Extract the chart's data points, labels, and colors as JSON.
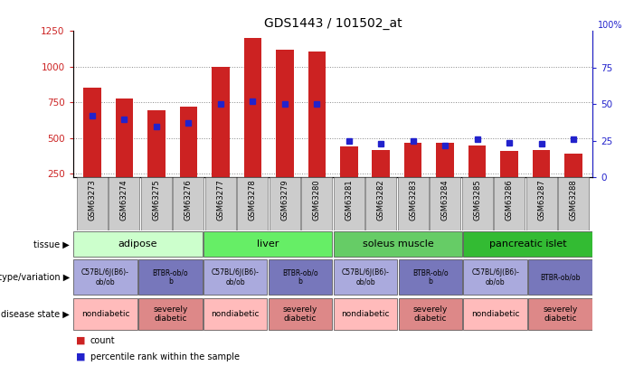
{
  "title": "GDS1443 / 101502_at",
  "samples": [
    "GSM63273",
    "GSM63274",
    "GSM63275",
    "GSM63276",
    "GSM63277",
    "GSM63278",
    "GSM63279",
    "GSM63280",
    "GSM63281",
    "GSM63282",
    "GSM63283",
    "GSM63284",
    "GSM63285",
    "GSM63286",
    "GSM63287",
    "GSM63288"
  ],
  "counts": [
    855,
    780,
    695,
    720,
    1000,
    1200,
    1120,
    1110,
    440,
    415,
    470,
    470,
    450,
    410,
    415,
    390
  ],
  "percentile_ranks": [
    42,
    40,
    35,
    37,
    50,
    52,
    50,
    50,
    25,
    23,
    25,
    22,
    26,
    24,
    23,
    26
  ],
  "ylim_left": [
    225,
    1250
  ],
  "ylim_right": [
    0,
    100
  ],
  "yticks_left": [
    250,
    500,
    750,
    1000,
    1250
  ],
  "yticks_right": [
    0,
    25,
    50,
    75,
    100
  ],
  "bar_color": "#cc2222",
  "dot_color": "#2222cc",
  "tissue_groups": [
    {
      "label": "adipose",
      "start": 0,
      "end": 3,
      "color": "#ccffcc"
    },
    {
      "label": "liver",
      "start": 4,
      "end": 7,
      "color": "#66ee66"
    },
    {
      "label": "soleus muscle",
      "start": 8,
      "end": 11,
      "color": "#66cc66"
    },
    {
      "label": "pancreatic islet",
      "start": 12,
      "end": 15,
      "color": "#33bb33"
    }
  ],
  "genotype_groups": [
    {
      "label": "C57BL/6J(B6)-\nob/ob",
      "start": 0,
      "end": 1,
      "color": "#aaaadd"
    },
    {
      "label": "BTBR-ob/o\nb",
      "start": 2,
      "end": 3,
      "color": "#7777bb"
    },
    {
      "label": "C57BL/6J(B6)-\nob/ob",
      "start": 4,
      "end": 5,
      "color": "#aaaadd"
    },
    {
      "label": "BTBR-ob/o\nb",
      "start": 6,
      "end": 7,
      "color": "#7777bb"
    },
    {
      "label": "C57BL/6J(B6)-\nob/ob",
      "start": 8,
      "end": 9,
      "color": "#aaaadd"
    },
    {
      "label": "BTBR-ob/o\nb",
      "start": 10,
      "end": 11,
      "color": "#7777bb"
    },
    {
      "label": "C57BL/6J(B6)-\nob/ob",
      "start": 12,
      "end": 13,
      "color": "#aaaadd"
    },
    {
      "label": "BTBR-ob/ob",
      "start": 14,
      "end": 15,
      "color": "#7777bb"
    }
  ],
  "disease_groups": [
    {
      "label": "nondiabetic",
      "start": 0,
      "end": 1,
      "color": "#ffbbbb"
    },
    {
      "label": "severely\ndiabetic",
      "start": 2,
      "end": 3,
      "color": "#dd8888"
    },
    {
      "label": "nondiabetic",
      "start": 4,
      "end": 5,
      "color": "#ffbbbb"
    },
    {
      "label": "severely\ndiabetic",
      "start": 6,
      "end": 7,
      "color": "#dd8888"
    },
    {
      "label": "nondiabetic",
      "start": 8,
      "end": 9,
      "color": "#ffbbbb"
    },
    {
      "label": "severely\ndiabetic",
      "start": 10,
      "end": 11,
      "color": "#dd8888"
    },
    {
      "label": "nondiabetic",
      "start": 12,
      "end": 13,
      "color": "#ffbbbb"
    },
    {
      "label": "severely\ndiabetic",
      "start": 14,
      "end": 15,
      "color": "#dd8888"
    }
  ],
  "legend_items": [
    {
      "label": "count",
      "color": "#cc2222"
    },
    {
      "label": "percentile rank within the sample",
      "color": "#2222cc"
    }
  ],
  "row_labels": [
    "tissue",
    "genotype/variation",
    "disease state"
  ],
  "grid_color": "#888888",
  "background_color": "#ffffff",
  "tick_box_color": "#cccccc"
}
